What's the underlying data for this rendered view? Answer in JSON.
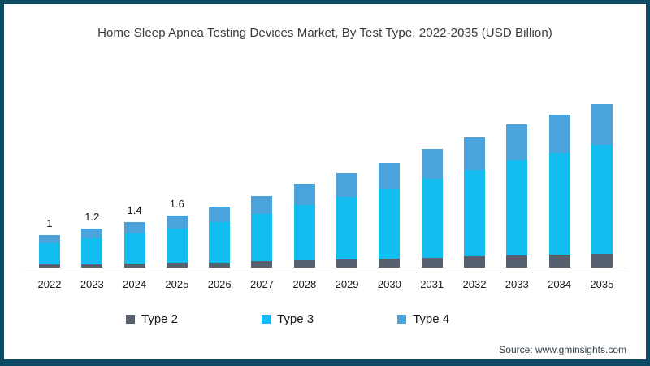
{
  "frame": {
    "border_color": "#0d4a63",
    "background": "#ffffff"
  },
  "title": "Home Sleep Apnea Testing Devices Market, By Test Type, 2022-2035 (USD Billion)",
  "source": "Source: www.gminsights.com",
  "legend": [
    {
      "label": "Type 2",
      "color": "#57606e"
    },
    {
      "label": "Type 3",
      "color": "#14bdf0"
    },
    {
      "label": "Type 4",
      "color": "#4aa3da"
    }
  ],
  "chart_data": {
    "type": "bar",
    "stacked": true,
    "title": "Home Sleep Apnea Testing Devices Market, By Test Type, 2022-2035 (USD Billion)",
    "unit": "USD Billion",
    "categories": [
      "2022",
      "2023",
      "2024",
      "2025",
      "2026",
      "2027",
      "2028",
      "2029",
      "2030",
      "2031",
      "2032",
      "2033",
      "2034",
      "2035"
    ],
    "series": [
      {
        "name": "Type 2",
        "color": "#57606e",
        "values": [
          0.1,
          0.11,
          0.12,
          0.14,
          0.16,
          0.19,
          0.22,
          0.25,
          0.28,
          0.31,
          0.34,
          0.38,
          0.4,
          0.43
        ]
      },
      {
        "name": "Type 3",
        "color": "#14bdf0",
        "values": [
          0.65,
          0.79,
          0.92,
          1.06,
          1.26,
          1.46,
          1.69,
          1.92,
          2.16,
          2.42,
          2.66,
          2.92,
          3.12,
          3.36
        ]
      },
      {
        "name": "Type 4",
        "color": "#4aa3da",
        "values": [
          0.25,
          0.3,
          0.36,
          0.4,
          0.48,
          0.55,
          0.64,
          0.73,
          0.81,
          0.92,
          1.0,
          1.1,
          1.18,
          1.26
        ]
      }
    ],
    "totals": [
      1.0,
      1.2,
      1.4,
      1.6,
      1.9,
      2.2,
      2.55,
      2.9,
      3.25,
      3.65,
      4.0,
      4.4,
      4.7,
      5.05
    ],
    "data_labels": [
      "1",
      "1.2",
      "1.4",
      "1.6",
      "",
      "",
      "",
      "",
      "",
      "",
      "",
      "",
      "",
      ""
    ],
    "layout": {
      "y_axis_visible": false,
      "gridlines": false,
      "legend_position": "bottom",
      "ylim": [
        0,
        5.5
      ]
    }
  }
}
